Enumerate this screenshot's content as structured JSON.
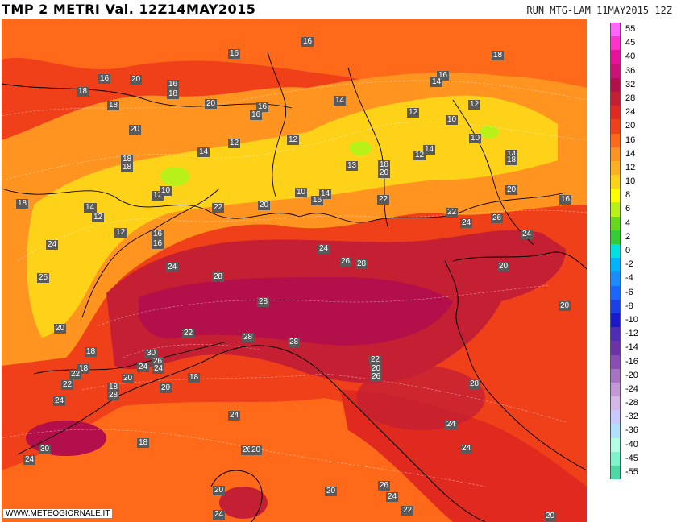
{
  "header": {
    "title": "TMP 2 METRI Val. 12Z14MAY2015",
    "run_info": "RUN MTG-LAM 11MAY2015 12Z"
  },
  "watermark": "WWW.METEOGIORNALE.IT",
  "legend": [
    {
      "label": "55",
      "color": "#ff66ff"
    },
    {
      "label": "45",
      "color": "#ff33cc"
    },
    {
      "label": "40",
      "color": "#e6119a"
    },
    {
      "label": "36",
      "color": "#cc1177"
    },
    {
      "label": "32",
      "color": "#b30f4a"
    },
    {
      "label": "28",
      "color": "#c41f33"
    },
    {
      "label": "24",
      "color": "#e02a20"
    },
    {
      "label": "20",
      "color": "#f0401a"
    },
    {
      "label": "16",
      "color": "#ff6a1a"
    },
    {
      "label": "14",
      "color": "#ff9420"
    },
    {
      "label": "12",
      "color": "#ffb020"
    },
    {
      "label": "10",
      "color": "#ffd21a"
    },
    {
      "label": "8",
      "color": "#ffff00"
    },
    {
      "label": "6",
      "color": "#b8f01a"
    },
    {
      "label": "4",
      "color": "#66d91a"
    },
    {
      "label": "2",
      "color": "#33cc33"
    },
    {
      "label": "0",
      "color": "#00e0e0"
    },
    {
      "label": "-2",
      "color": "#00b3ff"
    },
    {
      "label": "-4",
      "color": "#1a8cff"
    },
    {
      "label": "-6",
      "color": "#1a66ff"
    },
    {
      "label": "-8",
      "color": "#1a40e6"
    },
    {
      "label": "-10",
      "color": "#1a1acc"
    },
    {
      "label": "-12",
      "color": "#4d2db3"
    },
    {
      "label": "-14",
      "color": "#6b33a6"
    },
    {
      "label": "-16",
      "color": "#8a4db3"
    },
    {
      "label": "-20",
      "color": "#a673c4"
    },
    {
      "label": "-24",
      "color": "#c299d6"
    },
    {
      "label": "-28",
      "color": "#d6b8e6"
    },
    {
      "label": "-32",
      "color": "#c9c9ff"
    },
    {
      "label": "-36",
      "color": "#b3e0ff"
    },
    {
      "label": "-40",
      "color": "#b3ffe6"
    },
    {
      "label": "-45",
      "color": "#80f2cc"
    },
    {
      "label": "-55",
      "color": "#4dd9a6"
    }
  ],
  "city_labels": [
    "16",
    "16",
    "18",
    "20",
    "16",
    "18",
    "18",
    "18",
    "20",
    "16",
    "16",
    "14",
    "20",
    "12",
    "12",
    "10",
    "10",
    "12",
    "14",
    "12",
    "16",
    "18",
    "16",
    "14",
    "18",
    "18",
    "20",
    "12",
    "10",
    "12",
    "14",
    "10",
    "14",
    "16",
    "22",
    "20",
    "16",
    "16",
    "24",
    "12",
    "13",
    "18",
    "20",
    "22",
    "20",
    "22",
    "24",
    "26",
    "24",
    "20",
    "26",
    "28",
    "24",
    "28",
    "28",
    "26",
    "24",
    "20",
    "20",
    "22",
    "28",
    "28",
    "18",
    "20",
    "26",
    "24",
    "22",
    "20",
    "26",
    "18",
    "22",
    "30",
    "24",
    "18",
    "20",
    "26",
    "28",
    "20",
    "24",
    "18",
    "22",
    "28",
    "24",
    "30",
    "24",
    "18",
    "20",
    "20",
    "24",
    "26",
    "24",
    "22",
    "20",
    "24",
    "24",
    "20",
    "16",
    "14",
    "18",
    "14",
    "12",
    "14"
  ]
}
